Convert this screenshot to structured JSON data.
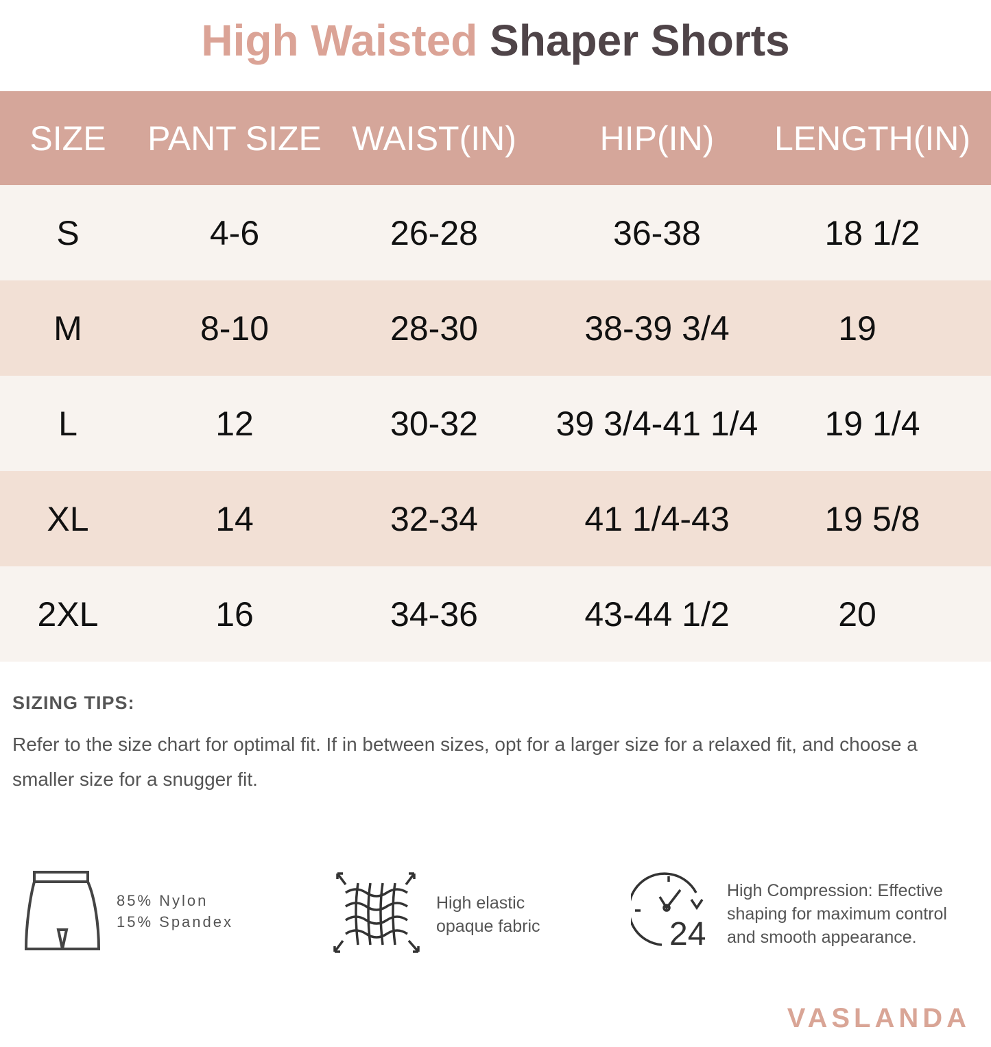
{
  "title": {
    "highlight": "High Waisted",
    "rest": "Shaper Shorts"
  },
  "colors": {
    "header_bg": "#d5a69a",
    "row_light": "#f8f3ef",
    "row_dark": "#f2e0d5",
    "title_accent": "#dba396",
    "title_dark": "#4f4448"
  },
  "table": {
    "headers": [
      "SIZE",
      "PANT SIZE",
      "WAIST(IN)",
      "HIP(IN)",
      "LENGTH(IN)"
    ],
    "rows": [
      [
        "S",
        "4-6",
        "26-28",
        "36-38",
        "18 1/2"
      ],
      [
        "M",
        "8-10",
        "28-30",
        "38-39 3/4",
        "19"
      ],
      [
        "L",
        "12",
        "30-32",
        "39 3/4-41 1/4",
        "19 1/4"
      ],
      [
        "XL",
        "14",
        "32-34",
        "41 1/4-43",
        "19 5/8"
      ],
      [
        "2XL",
        "16",
        "34-36",
        "43-44 1/2",
        "20"
      ]
    ]
  },
  "tips": {
    "heading": "SIZING TIPS:",
    "text": "Refer to the size chart for optimal fit. If in between sizes, opt for a  larger size for a relaxed fit, and choose a smaller size for a snugger fit."
  },
  "features": [
    {
      "icon": "shorts-icon",
      "lines": [
        "85% Nylon",
        "15% Spandex"
      ]
    },
    {
      "icon": "stretch-fabric-icon",
      "lines": [
        "High elastic",
        "opaque fabric"
      ]
    },
    {
      "icon": "clock-24-icon",
      "lines": [
        "High Compression: Effective",
        "shaping for maximum control",
        "and smooth appearance."
      ],
      "icon_text": "24"
    }
  ],
  "brand": "VASLANDA"
}
